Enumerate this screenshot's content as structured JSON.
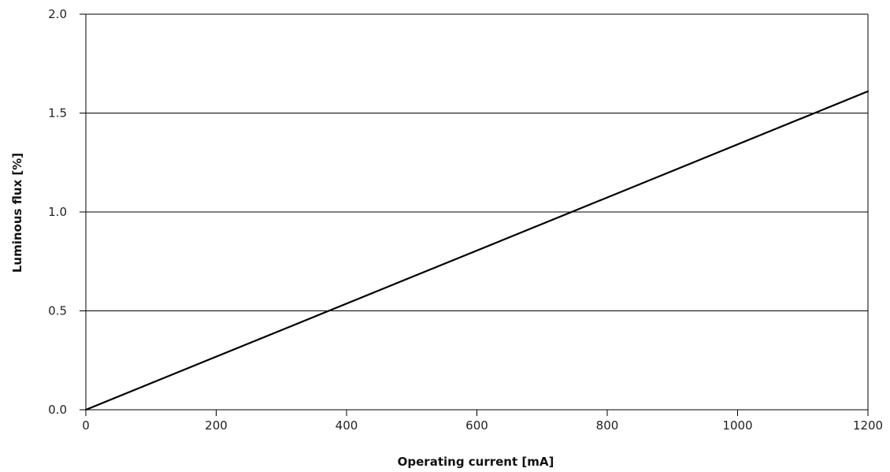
{
  "chart_data": {
    "type": "line",
    "title": "",
    "xlabel": "Operating current [mA]",
    "ylabel": "Luminous flux [%]",
    "xlim": [
      0,
      1200
    ],
    "ylim": [
      0.0,
      2.0
    ],
    "x_ticks": [
      0,
      200,
      400,
      600,
      800,
      1000,
      1200
    ],
    "x_tick_labels": [
      "0",
      "200",
      "400",
      "600",
      "800",
      "1000",
      "1200"
    ],
    "y_ticks": [
      0.0,
      0.5,
      1.0,
      1.5,
      2.0
    ],
    "y_tick_labels": [
      "0.0",
      "0.5",
      "1.0",
      "1.5",
      "2.0"
    ],
    "grid": "horizontal",
    "legend": "none",
    "series": [
      {
        "color": "#000000",
        "x": [
          0,
          1200
        ],
        "y": [
          0.0,
          1.61
        ]
      }
    ]
  }
}
